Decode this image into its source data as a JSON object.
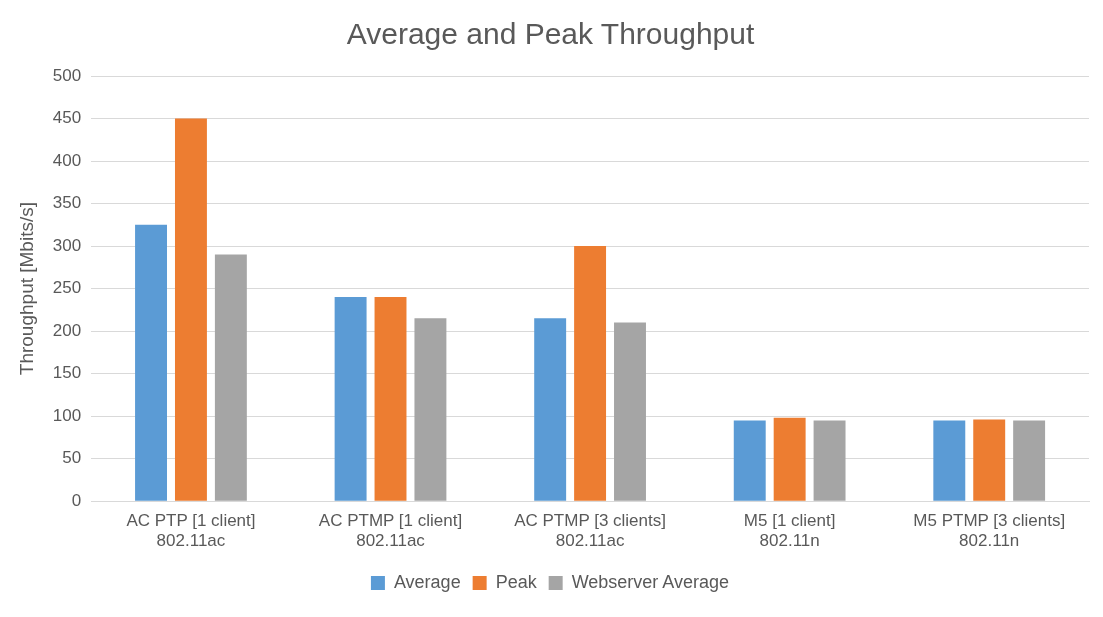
{
  "chart_data": {
    "type": "bar",
    "title": "Average and Peak Throughput",
    "ylabel": "Throughput [Mbits/s]",
    "categories": [
      "AC PTP [1 client]\n802.11ac",
      "AC PTMP [1 client]\n802.11ac",
      "AC PTMP [3 clients]\n802.11ac",
      "M5 [1 client]\n802.11n",
      "M5 PTMP [3 clients]\n802.11n"
    ],
    "series": [
      {
        "name": "Average",
        "color": "#5b9bd5",
        "values": [
          325,
          240,
          215,
          95,
          95
        ]
      },
      {
        "name": "Peak",
        "color": "#ed7d31",
        "values": [
          450,
          240,
          300,
          98,
          96
        ]
      },
      {
        "name": "Webserver Average",
        "color": "#a5a5a5",
        "values": [
          290,
          215,
          210,
          95,
          95
        ]
      }
    ],
    "ylim": [
      0,
      500
    ],
    "yticks": [
      0,
      50,
      100,
      150,
      200,
      250,
      300,
      350,
      400,
      450,
      500
    ],
    "grid": "y",
    "legend": "bottom"
  }
}
